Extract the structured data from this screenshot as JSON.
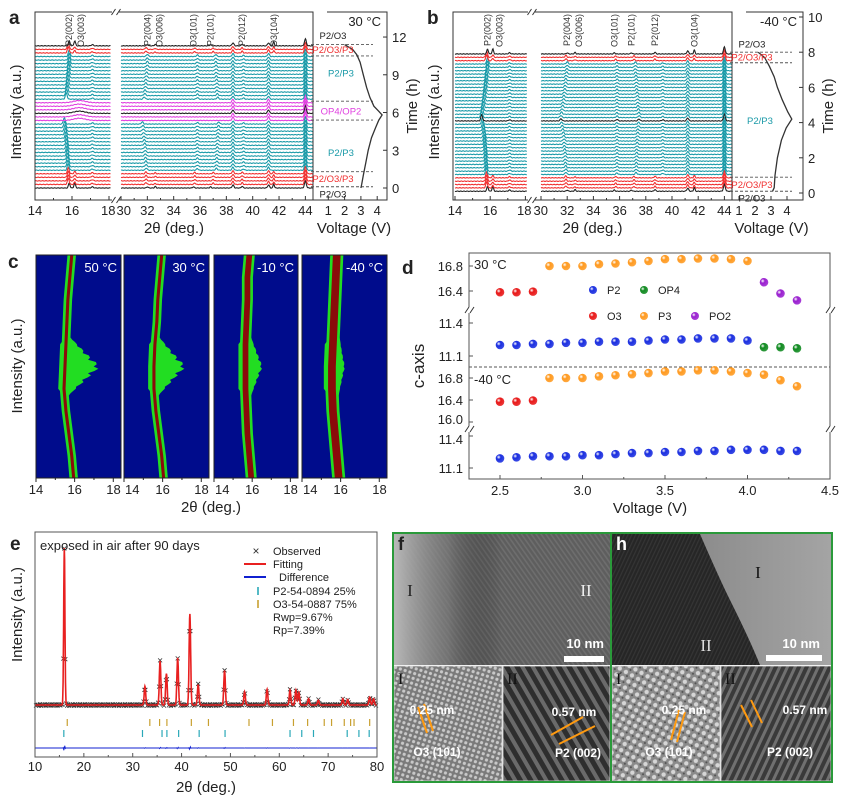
{
  "chart_data": [
    {
      "panel": "a",
      "type": "line",
      "temperature": "30 °C",
      "xlabel": "2θ (deg.)",
      "ylabel": "Intensity (a.u.)",
      "x_ticks_left": [
        14,
        16,
        18
      ],
      "x_ticks_right": [
        30,
        32,
        34,
        36,
        38,
        40,
        42,
        44
      ],
      "xlim_left": [
        14,
        18.1
      ],
      "xlim_right": [
        30,
        44.6
      ],
      "reflections": [
        {
          "label": "P2(002)",
          "two_theta": 15.85
        },
        {
          "label": "O3(003)",
          "two_theta": 16.15
        },
        {
          "label": "P2(004)",
          "two_theta": 32.0
        },
        {
          "label": "O3(006)",
          "two_theta": 32.6
        },
        {
          "label": "O3(101)",
          "two_theta": 35.5
        },
        {
          "label": "P2(101)",
          "two_theta": 36.8
        },
        {
          "label": "P2(012)",
          "two_theta": 39.2
        },
        {
          "label": "O3(104)",
          "two_theta": 41.6
        }
      ],
      "fixed_peaks_two_theta": [
        38.5,
        41.2,
        44.0
      ],
      "scan_groups": [
        {
          "phase": "P2/O3",
          "color": "#222222",
          "count": 1
        },
        {
          "phase": "P2/O3/P3",
          "color": "#f03030",
          "count": 4
        },
        {
          "phase": "P2/P3",
          "color": "#1a9aa8",
          "count": 14
        },
        {
          "phase": "OP4/OP2",
          "color": "#e040e0",
          "count": 2
        },
        {
          "phase": "OP4/OP2",
          "color": "#222222",
          "count": 1
        },
        {
          "phase": "OP4/OP2",
          "color": "#e040e0",
          "count": 3
        },
        {
          "phase": "P2/P3",
          "color": "#1a9aa8",
          "count": 13
        },
        {
          "phase": "P2/O3/P3",
          "color": "#f03030",
          "count": 2
        },
        {
          "phase": "P2/O3",
          "color": "#222222",
          "count": 1
        }
      ],
      "time_range_h": [
        0,
        11.3
      ],
      "voltage_panel": {
        "xlabel": "Voltage (V)",
        "ylabel": "Time (h)",
        "x_ticks": [
          1,
          2,
          3,
          4
        ],
        "y_ticks": [
          0,
          3,
          6,
          9,
          12
        ],
        "ylim": [
          -0.6,
          14
        ],
        "curve_V_t": [
          [
            3.0,
            0
          ],
          [
            3.05,
            0.3
          ],
          [
            3.15,
            1.0
          ],
          [
            3.3,
            2.0
          ],
          [
            3.45,
            3.0
          ],
          [
            3.65,
            4.0
          ],
          [
            3.9,
            4.8
          ],
          [
            4.1,
            5.4
          ],
          [
            4.3,
            5.8
          ],
          [
            4.1,
            6.1
          ],
          [
            3.8,
            6.5
          ],
          [
            3.55,
            7.2
          ],
          [
            3.35,
            8.0
          ],
          [
            3.15,
            9.0
          ],
          [
            2.95,
            10.0
          ],
          [
            2.75,
            10.6
          ],
          [
            2.5,
            11.0
          ],
          [
            2.0,
            11.4
          ]
        ]
      },
      "phase_labels": [
        {
          "text": "P2/O3",
          "time_h": 12.1,
          "color": "#222222"
        },
        {
          "text": "P2/O3/P3",
          "time_h": 10.95,
          "color": "#f03030"
        },
        {
          "text": "P2/P3",
          "time_h": 9.1,
          "color": "#1a9aa8"
        },
        {
          "text": "OP4/OP2",
          "time_h": 6.1,
          "color": "#e040e0"
        },
        {
          "text": "P2/P3",
          "time_h": 2.8,
          "color": "#1a9aa8"
        },
        {
          "text": "P2/O3/P3",
          "time_h": 0.7,
          "color": "#f03030"
        },
        {
          "text": "P2/O3",
          "time_h": -0.5,
          "color": "#222222"
        }
      ],
      "phase_boundaries_h": [
        11.4,
        10.5,
        6.9,
        5.4,
        1.3,
        0.1
      ]
    },
    {
      "panel": "b",
      "type": "line",
      "temperature": "-40 °C",
      "xlabel": "2θ (deg.)",
      "ylabel": "Intensity (a.u.)",
      "x_ticks_left": [
        14,
        16,
        18
      ],
      "x_ticks_right": [
        30,
        32,
        34,
        36,
        38,
        40,
        42,
        44
      ],
      "xlim_left": [
        14,
        18.1
      ],
      "xlim_right": [
        30,
        44.6
      ],
      "reflections": [
        {
          "label": "P2(002)",
          "two_theta": 15.85
        },
        {
          "label": "O3(003)",
          "two_theta": 16.15
        },
        {
          "label": "P2(004)",
          "two_theta": 32.0
        },
        {
          "label": "O3(006)",
          "two_theta": 32.6
        },
        {
          "label": "O3(101)",
          "two_theta": 35.6
        },
        {
          "label": "P2(101)",
          "two_theta": 36.9
        },
        {
          "label": "P2(012)",
          "two_theta": 38.7
        },
        {
          "label": "O3(104)",
          "two_theta": 41.7
        }
      ],
      "fixed_peaks_two_theta": [
        41.2,
        44.0
      ],
      "scan_groups": [
        {
          "phase": "P2/O3",
          "color": "#222222",
          "count": 1
        },
        {
          "phase": "P2/O3/P3",
          "color": "#f03030",
          "count": 4
        },
        {
          "phase": "P2/P3",
          "color": "#1a9aa8",
          "count": 16
        },
        {
          "phase": "P2/P3",
          "color": "#222222",
          "count": 1
        },
        {
          "phase": "P2/P3",
          "color": "#1a9aa8",
          "count": 17
        },
        {
          "phase": "P2/O3/P3",
          "color": "#f03030",
          "count": 2
        },
        {
          "phase": "P2/O3",
          "color": "#222222",
          "count": 1
        }
      ],
      "time_range_h": [
        0.1,
        7.9
      ],
      "voltage_panel": {
        "xlabel": "Voltage (V)",
        "ylabel": "Time (h)",
        "x_ticks": [
          1,
          2,
          3,
          4
        ],
        "y_ticks": [
          0,
          2,
          4,
          6,
          8,
          10
        ],
        "ylim": [
          -0.4,
          10.5
        ],
        "curve_V_t": [
          [
            3.1,
            0.1
          ],
          [
            3.2,
            0.3
          ],
          [
            3.25,
            1.0
          ],
          [
            3.4,
            2.0
          ],
          [
            3.65,
            3.0
          ],
          [
            3.95,
            3.7
          ],
          [
            4.3,
            4.2
          ],
          [
            4.05,
            4.6
          ],
          [
            3.7,
            5.3
          ],
          [
            3.4,
            6.0
          ],
          [
            3.2,
            6.6
          ],
          [
            2.9,
            7.2
          ],
          [
            2.6,
            7.7
          ],
          [
            2.2,
            8.0
          ]
        ]
      },
      "phase_labels": [
        {
          "text": "P2/O3",
          "time_h": 8.35,
          "color": "#222222"
        },
        {
          "text": "P2/O3/P3",
          "time_h": 7.7,
          "color": "#f03030"
        },
        {
          "text": "P2/P3",
          "time_h": 4.1,
          "color": "#1a9aa8"
        },
        {
          "text": "P2/O3/P3",
          "time_h": 0.45,
          "color": "#f03030"
        },
        {
          "text": "P2/O3",
          "time_h": -0.3,
          "color": "#222222"
        }
      ],
      "phase_boundaries_h": [
        8.0,
        7.4,
        0.9,
        0.1
      ]
    },
    {
      "panel": "c",
      "type": "heatmap",
      "xlabel": "2θ (deg.)",
      "ylabel": "Intensity (a.u.)",
      "x_ticks": [
        14,
        16,
        18
      ],
      "xlim": [
        14,
        18.4
      ],
      "colors": {
        "background": "#000c8c",
        "medium": "#22dd22",
        "high": "#8b0a0a"
      },
      "maps": [
        {
          "temperature": "50 °C",
          "peak_center_two_theta": [
            15.95,
            15.85,
            15.7,
            15.55,
            15.45,
            15.5,
            15.55,
            15.6,
            15.65,
            15.75,
            15.85
          ],
          "peak_width_two_theta": 0.08,
          "max_extent_two_theta": 17.2
        },
        {
          "temperature": "30 °C",
          "peak_center_two_theta": [
            16.05,
            15.95,
            15.8,
            15.65,
            15.55,
            15.55,
            15.6,
            15.7,
            15.75,
            15.85,
            15.95
          ],
          "peak_width_two_theta": 0.08,
          "max_extent_two_theta": 17.1
        },
        {
          "temperature": "-10 °C",
          "peak_center_two_theta": [
            15.95,
            15.85,
            15.75,
            15.7,
            15.65,
            15.65,
            15.65,
            15.7,
            15.75,
            15.75,
            15.85
          ],
          "peak_width_two_theta": 0.15,
          "max_extent_two_theta": 16.5
        },
        {
          "temperature": "-40 °C",
          "peak_center_two_theta": [
            15.9,
            15.8,
            15.7,
            15.6,
            15.55,
            15.55,
            15.6,
            15.65,
            15.7,
            15.75,
            15.8
          ],
          "peak_width_two_theta": 0.2,
          "max_extent_two_theta": 16.2
        }
      ]
    },
    {
      "panel": "d",
      "type": "scatter",
      "xlabel": "Voltage (V)",
      "ylabel": "c-axis",
      "x_ticks": [
        2.5,
        3.0,
        3.5,
        4.0,
        4.5
      ],
      "xlim": [
        2.3,
        4.5
      ],
      "y_ticks_upper": [
        16.8,
        16.4,
        11.4,
        11.1
      ],
      "y_ticks_lower": [
        16.8,
        16.4,
        16.0,
        11.4,
        11.1
      ],
      "legend": [
        {
          "name": "P2",
          "color": "#1a2ee0"
        },
        {
          "name": "OP4",
          "color": "#108a20"
        },
        {
          "name": "O3",
          "color": "#e81818"
        },
        {
          "name": "P3",
          "color": "#ff9a20"
        },
        {
          "name": "PO2",
          "color": "#9a20d0"
        }
      ],
      "groups": [
        {
          "temperature": "30 °C",
          "series": [
            {
              "name": "O3",
              "x": [
                2.5,
                2.6,
                2.7
              ],
              "y": [
                16.38,
                16.38,
                16.39
              ]
            },
            {
              "name": "P3",
              "x": [
                2.8,
                2.9,
                3.0,
                3.1,
                3.2,
                3.3,
                3.4,
                3.5,
                3.6,
                3.7,
                3.8,
                3.9,
                4.0
              ],
              "y": [
                16.8,
                16.8,
                16.8,
                16.83,
                16.84,
                16.86,
                16.88,
                16.91,
                16.91,
                16.92,
                16.92,
                16.91,
                16.88
              ]
            },
            {
              "name": "PO2",
              "x": [
                4.1,
                4.2,
                4.3
              ],
              "y": [
                16.54,
                16.36,
                16.25
              ]
            },
            {
              "name": "P2",
              "x": [
                2.5,
                2.6,
                2.7,
                2.8,
                2.9,
                3.0,
                3.1,
                3.2,
                3.3,
                3.4,
                3.5,
                3.6,
                3.7,
                3.8,
                3.9,
                4.0
              ],
              "y": [
                11.2,
                11.2,
                11.21,
                11.21,
                11.22,
                11.22,
                11.23,
                11.23,
                11.23,
                11.24,
                11.25,
                11.25,
                11.26,
                11.26,
                11.26,
                11.24
              ]
            },
            {
              "name": "OP4",
              "x": [
                4.1,
                4.2,
                4.3
              ],
              "y": [
                11.18,
                11.18,
                11.17
              ]
            }
          ]
        },
        {
          "temperature": "-40 °C",
          "series": [
            {
              "name": "O3",
              "x": [
                2.5,
                2.6,
                2.7
              ],
              "y": [
                16.37,
                16.37,
                16.39
              ]
            },
            {
              "name": "P3",
              "x": [
                2.8,
                2.9,
                3.0,
                3.1,
                3.2,
                3.3,
                3.4,
                3.5,
                3.6,
                3.7,
                3.8,
                3.9,
                4.0,
                4.1,
                4.2,
                4.3
              ],
              "y": [
                16.8,
                16.8,
                16.8,
                16.83,
                16.85,
                16.87,
                16.89,
                16.92,
                16.92,
                16.94,
                16.94,
                16.92,
                16.89,
                16.86,
                16.76,
                16.65
              ]
            },
            {
              "name": "P2",
              "x": [
                2.5,
                2.6,
                2.7,
                2.8,
                2.9,
                3.0,
                3.1,
                3.2,
                3.3,
                3.4,
                3.5,
                3.6,
                3.7,
                3.8,
                3.9,
                4.0,
                4.1,
                4.2,
                4.3
              ],
              "y": [
                11.19,
                11.2,
                11.21,
                11.21,
                11.21,
                11.22,
                11.22,
                11.23,
                11.24,
                11.24,
                11.25,
                11.25,
                11.26,
                11.26,
                11.27,
                11.27,
                11.27,
                11.26,
                11.26
              ]
            }
          ]
        }
      ]
    },
    {
      "panel": "e",
      "type": "line",
      "title": "exposed in air after 90 days",
      "xlabel": "2θ (deg.)",
      "ylabel": "Intensity (a.u.)",
      "x_ticks": [
        10,
        20,
        30,
        40,
        50,
        60,
        70,
        80
      ],
      "xlim": [
        10,
        80
      ],
      "legend": [
        {
          "name": "Observed",
          "marker": "×",
          "color": "#333333"
        },
        {
          "name": "Fitting",
          "color": "#e82020"
        },
        {
          "name": "Difference",
          "color": "#1020d0"
        },
        {
          "name": "P2-54-0894  25%",
          "color": "#2aa8b8"
        },
        {
          "name": "O3-54-0887  75%",
          "color": "#c8a030"
        }
      ],
      "refinement": [
        "Rwp=9.67%",
        "Rp=7.39%"
      ],
      "peaks_two_theta": [
        16.0,
        32.5,
        35.6,
        36.9,
        39.2,
        41.7,
        43.4,
        48.8,
        52.9,
        57.5,
        62.2,
        63.4,
        64.0,
        66.0,
        68.0,
        73.0,
        74.0,
        78.5,
        79.3
      ],
      "peaks_relative_intensity": [
        1.0,
        0.12,
        0.28,
        0.2,
        0.3,
        0.58,
        0.13,
        0.22,
        0.085,
        0.1,
        0.095,
        0.095,
        0.08,
        0.04,
        0.03,
        0.04,
        0.035,
        0.05,
        0.04
      ],
      "o3_ticks_two_theta": [
        16.6,
        33.5,
        35.5,
        37.0,
        42.0,
        45.5,
        53.8,
        58.6,
        62.9,
        65.8,
        69.2,
        70.7,
        73.3,
        74.6,
        75.3,
        78.5
      ],
      "p2_ticks_two_theta": [
        15.9,
        32.0,
        36.0,
        37.0,
        39.4,
        43.6,
        48.9,
        62.2,
        64.6,
        67.0,
        73.9,
        76.3,
        78.4
      ]
    }
  ],
  "tem": {
    "frame_color": "#2a9a3a",
    "panels": [
      {
        "letter": "f",
        "region_labels": [
          "I",
          "II"
        ],
        "scale_bar": "10 nm",
        "insets": [
          {
            "label": "I",
            "spacing": "0.25 nm",
            "plane": "O3 (101)"
          },
          {
            "label": "II",
            "spacing": "0.57 nm",
            "plane": "P2 (002)"
          }
        ]
      },
      {
        "letter": "h",
        "region_labels": [
          "I",
          "II"
        ],
        "scale_bar": "10 nm",
        "insets": [
          {
            "label": "I",
            "spacing": "0.25 nm",
            "plane": "O3 (101)"
          },
          {
            "label": "II",
            "spacing": "0.57 nm",
            "plane": "P2 (002)"
          }
        ]
      }
    ],
    "marker_color": "#ff9a10"
  }
}
